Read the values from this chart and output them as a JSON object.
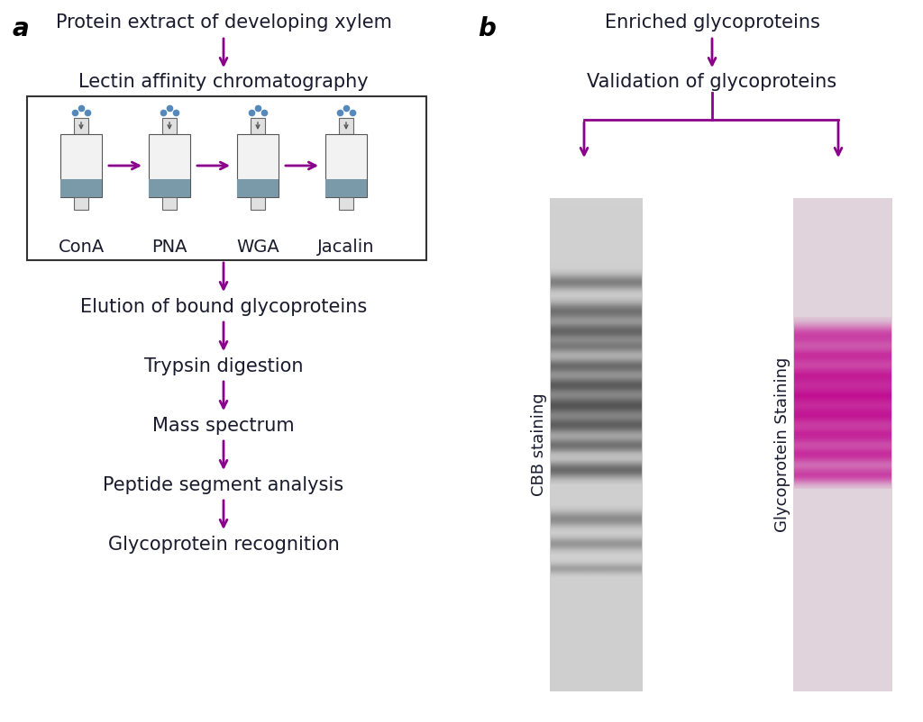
{
  "arrow_color": "#8B008B",
  "text_color": "#1a1a2e",
  "blue_dot_color": "#5588bb",
  "label_a": "a",
  "label_b": "b",
  "step1": "Protein extract of developing xylem",
  "step2": "Lectin affinity chromatography",
  "step3": "Elution of bound glycoproteins",
  "step4": "Trypsin digestion",
  "step5": "Mass spectrum",
  "step6": "Peptide segment analysis",
  "step7": "Glycoprotein recognition",
  "lectin_labels": [
    "ConA",
    "PNA",
    "WGA",
    "Jacalin"
  ],
  "b_step1": "Enriched glycoproteins",
  "b_step2": "Validation of glycoproteins",
  "b_label1": "CBB staining",
  "b_label2": "Glycoprotein Staining",
  "font_size_main": 15,
  "font_size_label": 13,
  "font_size_ab": 20,
  "font_size_lectin": 14
}
